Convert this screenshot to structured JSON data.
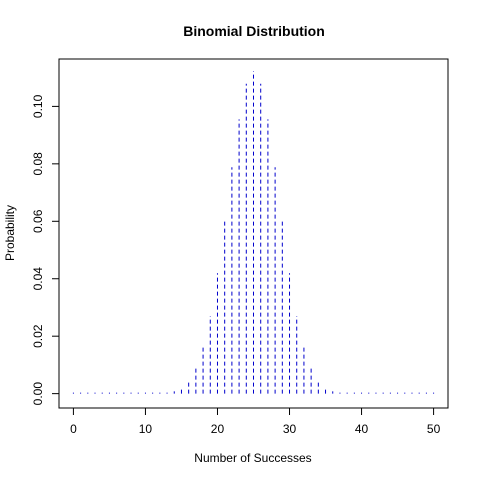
{
  "chart_data": {
    "type": "bar",
    "title": "Binomial Distribution",
    "xlabel": "Number of Successes",
    "ylabel": "Probability",
    "xlim": [
      -2,
      52
    ],
    "ylim": [
      -0.005,
      0.1165
    ],
    "x_ticks": [
      "0",
      "10",
      "20",
      "30",
      "40",
      "50"
    ],
    "y_ticks": [
      "0.00",
      "0.02",
      "0.04",
      "0.06",
      "0.08",
      "0.10"
    ],
    "line_color": "#0000cc",
    "line_style": "dashed",
    "grid": false,
    "x": [
      0,
      1,
      2,
      3,
      4,
      5,
      6,
      7,
      8,
      9,
      10,
      11,
      12,
      13,
      14,
      15,
      16,
      17,
      18,
      19,
      20,
      21,
      22,
      23,
      24,
      25,
      26,
      27,
      28,
      29,
      30,
      31,
      32,
      33,
      34,
      35,
      36,
      37,
      38,
      39,
      40,
      41,
      42,
      43,
      44,
      45,
      46,
      47,
      48,
      49,
      50
    ],
    "values": [
      0,
      0,
      0,
      0,
      0,
      0,
      0,
      0,
      0,
      0,
      0,
      0,
      0,
      0.0003,
      0.0008,
      0.002,
      0.0044,
      0.0087,
      0.016,
      0.027,
      0.0419,
      0.06,
      0.0788,
      0.0955,
      0.1079,
      0.1123,
      0.1079,
      0.0955,
      0.0788,
      0.06,
      0.0419,
      0.027,
      0.016,
      0.0087,
      0.0044,
      0.002,
      0.0008,
      0.0003,
      0,
      0,
      0,
      0,
      0,
      0,
      0,
      0,
      0,
      0,
      0,
      0,
      0
    ]
  }
}
